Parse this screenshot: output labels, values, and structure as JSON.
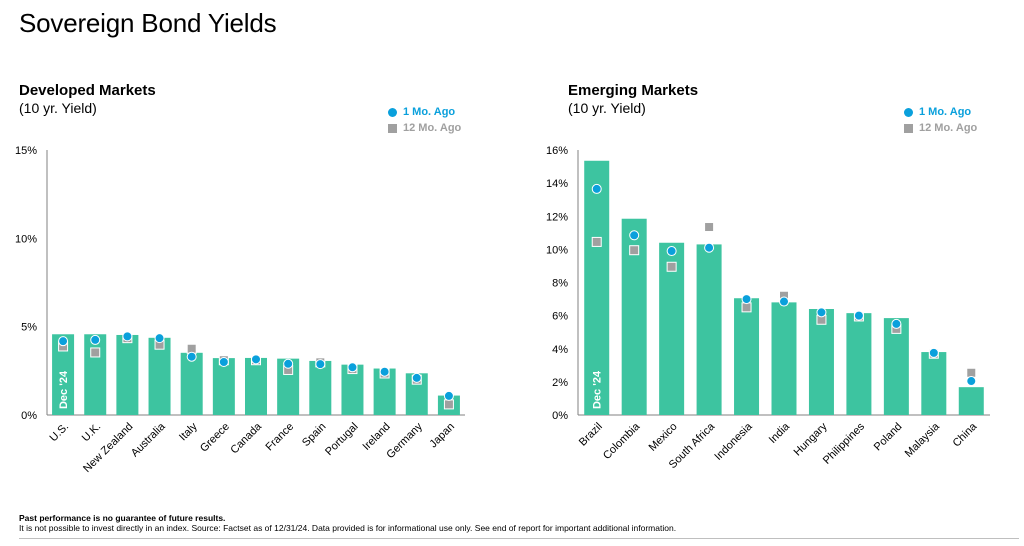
{
  "page": {
    "title": "Sovereign Bond Yields",
    "footer_bold": "Past performance is no guarantee of future results.",
    "footer_text": "It is not possible to invest directly in an index. Source: Factset as of 12/31/24. Data provided is for informational use only. See end of report for important additional information."
  },
  "colors": {
    "bar": "#3dc4a0",
    "one_month": "#0aa0dc",
    "twelve_month": "#a0a0a0",
    "axis": "#808080"
  },
  "chart_data": [
    {
      "type": "bar",
      "title": "Developed Markets",
      "subtitle": "(10 yr. Yield)",
      "bar_label": "Dec '24",
      "legend": {
        "one_month": "1 Mo. Ago",
        "twelve_month": "12 Mo. Ago"
      },
      "categories": [
        "U.S.",
        "U.K.",
        "New Zealand",
        "Australia",
        "Italy",
        "Greece",
        "Canada",
        "France",
        "Spain",
        "Portugal",
        "Ireland",
        "Germany",
        "Japan"
      ],
      "yticks": [
        "0%",
        "5%",
        "10%",
        "15%"
      ],
      "ylim": [
        0,
        15
      ],
      "series": [
        {
          "name": "Dec '24",
          "values": [
            4.57,
            4.57,
            4.53,
            4.37,
            3.52,
            3.22,
            3.23,
            3.19,
            3.06,
            2.85,
            2.63,
            2.36,
            1.1
          ]
        },
        {
          "name": "1 Mo. Ago",
          "values": [
            4.18,
            4.25,
            4.45,
            4.35,
            3.3,
            3.0,
            3.15,
            2.9,
            2.88,
            2.7,
            2.45,
            2.1,
            1.08
          ]
        },
        {
          "name": "12 Mo. Ago",
          "values": [
            3.88,
            3.54,
            4.35,
            3.98,
            3.75,
            3.1,
            3.1,
            2.55,
            2.98,
            2.6,
            2.35,
            2.0,
            0.6
          ]
        }
      ]
    },
    {
      "type": "bar",
      "title": "Emerging Markets",
      "subtitle": "(10 yr. Yield)",
      "bar_label": "Dec '24",
      "legend": {
        "one_month": "1 Mo. Ago",
        "twelve_month": "12 Mo. Ago"
      },
      "categories": [
        "Brazil",
        "Colombia",
        "Mexico",
        "South Africa",
        "Indonesia",
        "India",
        "Hungary",
        "Philippines",
        "Poland",
        "Malaysia",
        "China"
      ],
      "yticks": [
        "0%",
        "2%",
        "4%",
        "6%",
        "8%",
        "10%",
        "12%",
        "14%",
        "16%"
      ],
      "ylim": [
        0,
        16
      ],
      "series": [
        {
          "name": "Dec '24",
          "values": [
            15.35,
            11.85,
            10.4,
            10.3,
            7.05,
            6.8,
            6.4,
            6.15,
            5.85,
            3.8,
            1.68
          ]
        },
        {
          "name": "1 Mo. Ago",
          "values": [
            13.65,
            10.85,
            9.9,
            10.1,
            7.0,
            6.85,
            6.2,
            6.0,
            5.5,
            3.75,
            2.05
          ]
        },
        {
          "name": "12 Mo. Ago",
          "values": [
            10.45,
            9.95,
            8.95,
            11.35,
            6.5,
            7.2,
            5.75,
            5.95,
            5.2,
            3.7,
            2.55
          ]
        }
      ]
    }
  ]
}
